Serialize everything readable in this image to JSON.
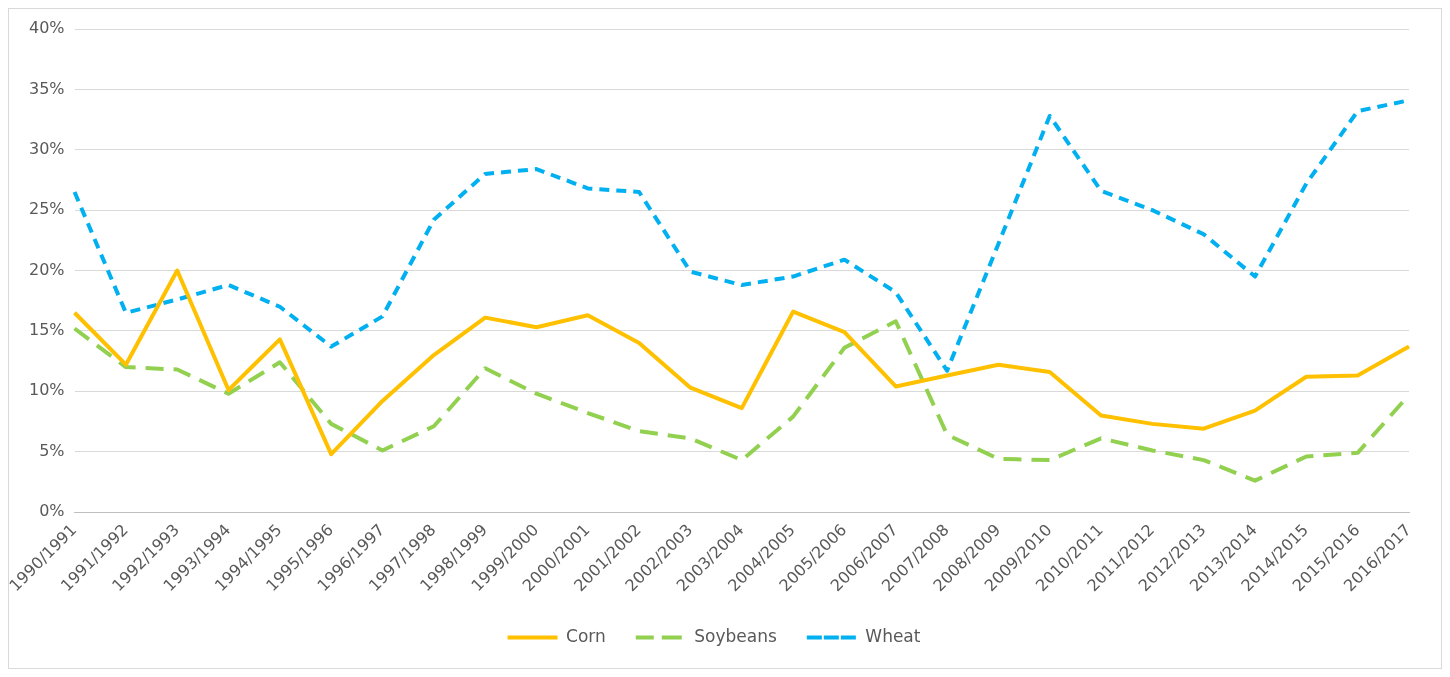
{
  "chart_data": {
    "type": "line",
    "categories": [
      "1990/1991",
      "1991/1992",
      "1992/1993",
      "1993/1994",
      "1994/1995",
      "1995/1996",
      "1996/1997",
      "1997/1998",
      "1998/1999",
      "1999/2000",
      "2000/2001",
      "2001/2002",
      "2002/2003",
      "2003/2004",
      "2004/2005",
      "2005/2006",
      "2006/2007",
      "2007/2008",
      "2008/2009",
      "2009/2010",
      "2010/2011",
      "2011/2012",
      "2012/2013",
      "2013/2014",
      "2014/2015",
      "2015/2016",
      "2016/2017"
    ],
    "series": [
      {
        "name": "Corn",
        "color": "#ffc000",
        "line_style": "solid",
        "values": [
          16.5,
          12.2,
          20,
          10.1,
          14.3,
          4.8,
          9.2,
          13,
          16.1,
          15.3,
          16.3,
          14,
          10.3,
          8.6,
          16.6,
          14.9,
          10.4,
          11.3,
          12.2,
          11.6,
          8,
          7.3,
          6.9,
          8.4,
          11.2,
          11.3,
          13.7
        ]
      },
      {
        "name": "Soybeans",
        "color": "#92d050",
        "line_style": "dashed",
        "values": [
          15.2,
          12,
          11.8,
          9.8,
          12.4,
          7.3,
          5.1,
          7.1,
          11.9,
          9.8,
          8.2,
          6.7,
          6.1,
          4.3,
          7.9,
          13.6,
          15.8,
          6.4,
          4.4,
          4.3,
          6.1,
          5.1,
          4.3,
          2.6,
          4.6,
          4.9,
          9.7
        ]
      },
      {
        "name": "Wheat",
        "color": "#00b0f0",
        "line_style": "dotted",
        "values": [
          26.5,
          16.5,
          17.6,
          18.8,
          17,
          13.7,
          16.2,
          24.2,
          28,
          28.4,
          26.8,
          26.5,
          19.9,
          18.8,
          19.5,
          20.9,
          18.2,
          11.7,
          22.2,
          32.8,
          26.6,
          25,
          23,
          19.5,
          27.2,
          33.2,
          34.1
        ]
      }
    ],
    "ylim": [
      0,
      40
    ],
    "yticks": [
      {
        "value": 0,
        "label": "0%"
      },
      {
        "value": 5,
        "label": "5%"
      },
      {
        "value": 10,
        "label": "10%"
      },
      {
        "value": 15,
        "label": "15%"
      },
      {
        "value": 20,
        "label": "20%"
      },
      {
        "value": 25,
        "label": "25%"
      },
      {
        "value": 30,
        "label": "30%"
      },
      {
        "value": 35,
        "label": "35%"
      },
      {
        "value": 40,
        "label": "40%"
      }
    ],
    "grid": "y",
    "legend": "bottom",
    "marker": "none"
  }
}
